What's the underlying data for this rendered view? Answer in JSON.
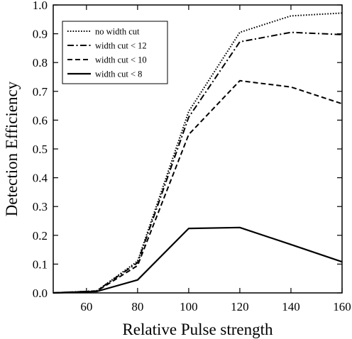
{
  "chart_data": {
    "type": "line",
    "xlabel": "Relative Pulse strength",
    "ylabel": "Detection Efficiency",
    "xlim": [
      47,
      160
    ],
    "ylim": [
      0,
      1.0
    ],
    "xticks": [
      60,
      80,
      100,
      120,
      140,
      160
    ],
    "xtick_labels": [
      "60",
      "80",
      "100",
      "120",
      "140",
      "160"
    ],
    "yticks": [
      0.0,
      0.1,
      0.2,
      0.3,
      0.4,
      0.5,
      0.6,
      0.7,
      0.8,
      0.9,
      1.0
    ],
    "ytick_labels": [
      "0.0",
      "0.1",
      "0.2",
      "0.3",
      "0.4",
      "0.5",
      "0.6",
      "0.7",
      "0.8",
      "0.9",
      "1.0"
    ],
    "grid": false,
    "legend_position": "top-left",
    "series": [
      {
        "name": "no width cut",
        "dash": "dotted",
        "x": [
          47,
          64,
          80,
          100,
          120,
          140,
          160
        ],
        "y": [
          0.0,
          0.007,
          0.11,
          0.63,
          0.905,
          0.962,
          0.972
        ]
      },
      {
        "name": "width cut < 12",
        "dash": "dashdot",
        "x": [
          47,
          64,
          80,
          100,
          120,
          140,
          160
        ],
        "y": [
          0.0,
          0.007,
          0.105,
          0.61,
          0.872,
          0.905,
          0.897
        ]
      },
      {
        "name": "width cut < 10",
        "dash": "dashed",
        "x": [
          47,
          64,
          80,
          100,
          120,
          140,
          160
        ],
        "y": [
          0.0,
          0.006,
          0.095,
          0.55,
          0.737,
          0.715,
          0.657
        ]
      },
      {
        "name": "width cut < 8",
        "dash": "solid",
        "x": [
          47,
          64,
          80,
          100,
          120,
          140,
          160
        ],
        "y": [
          0.0,
          0.005,
          0.045,
          0.224,
          0.227,
          0.168,
          0.108
        ]
      }
    ]
  }
}
